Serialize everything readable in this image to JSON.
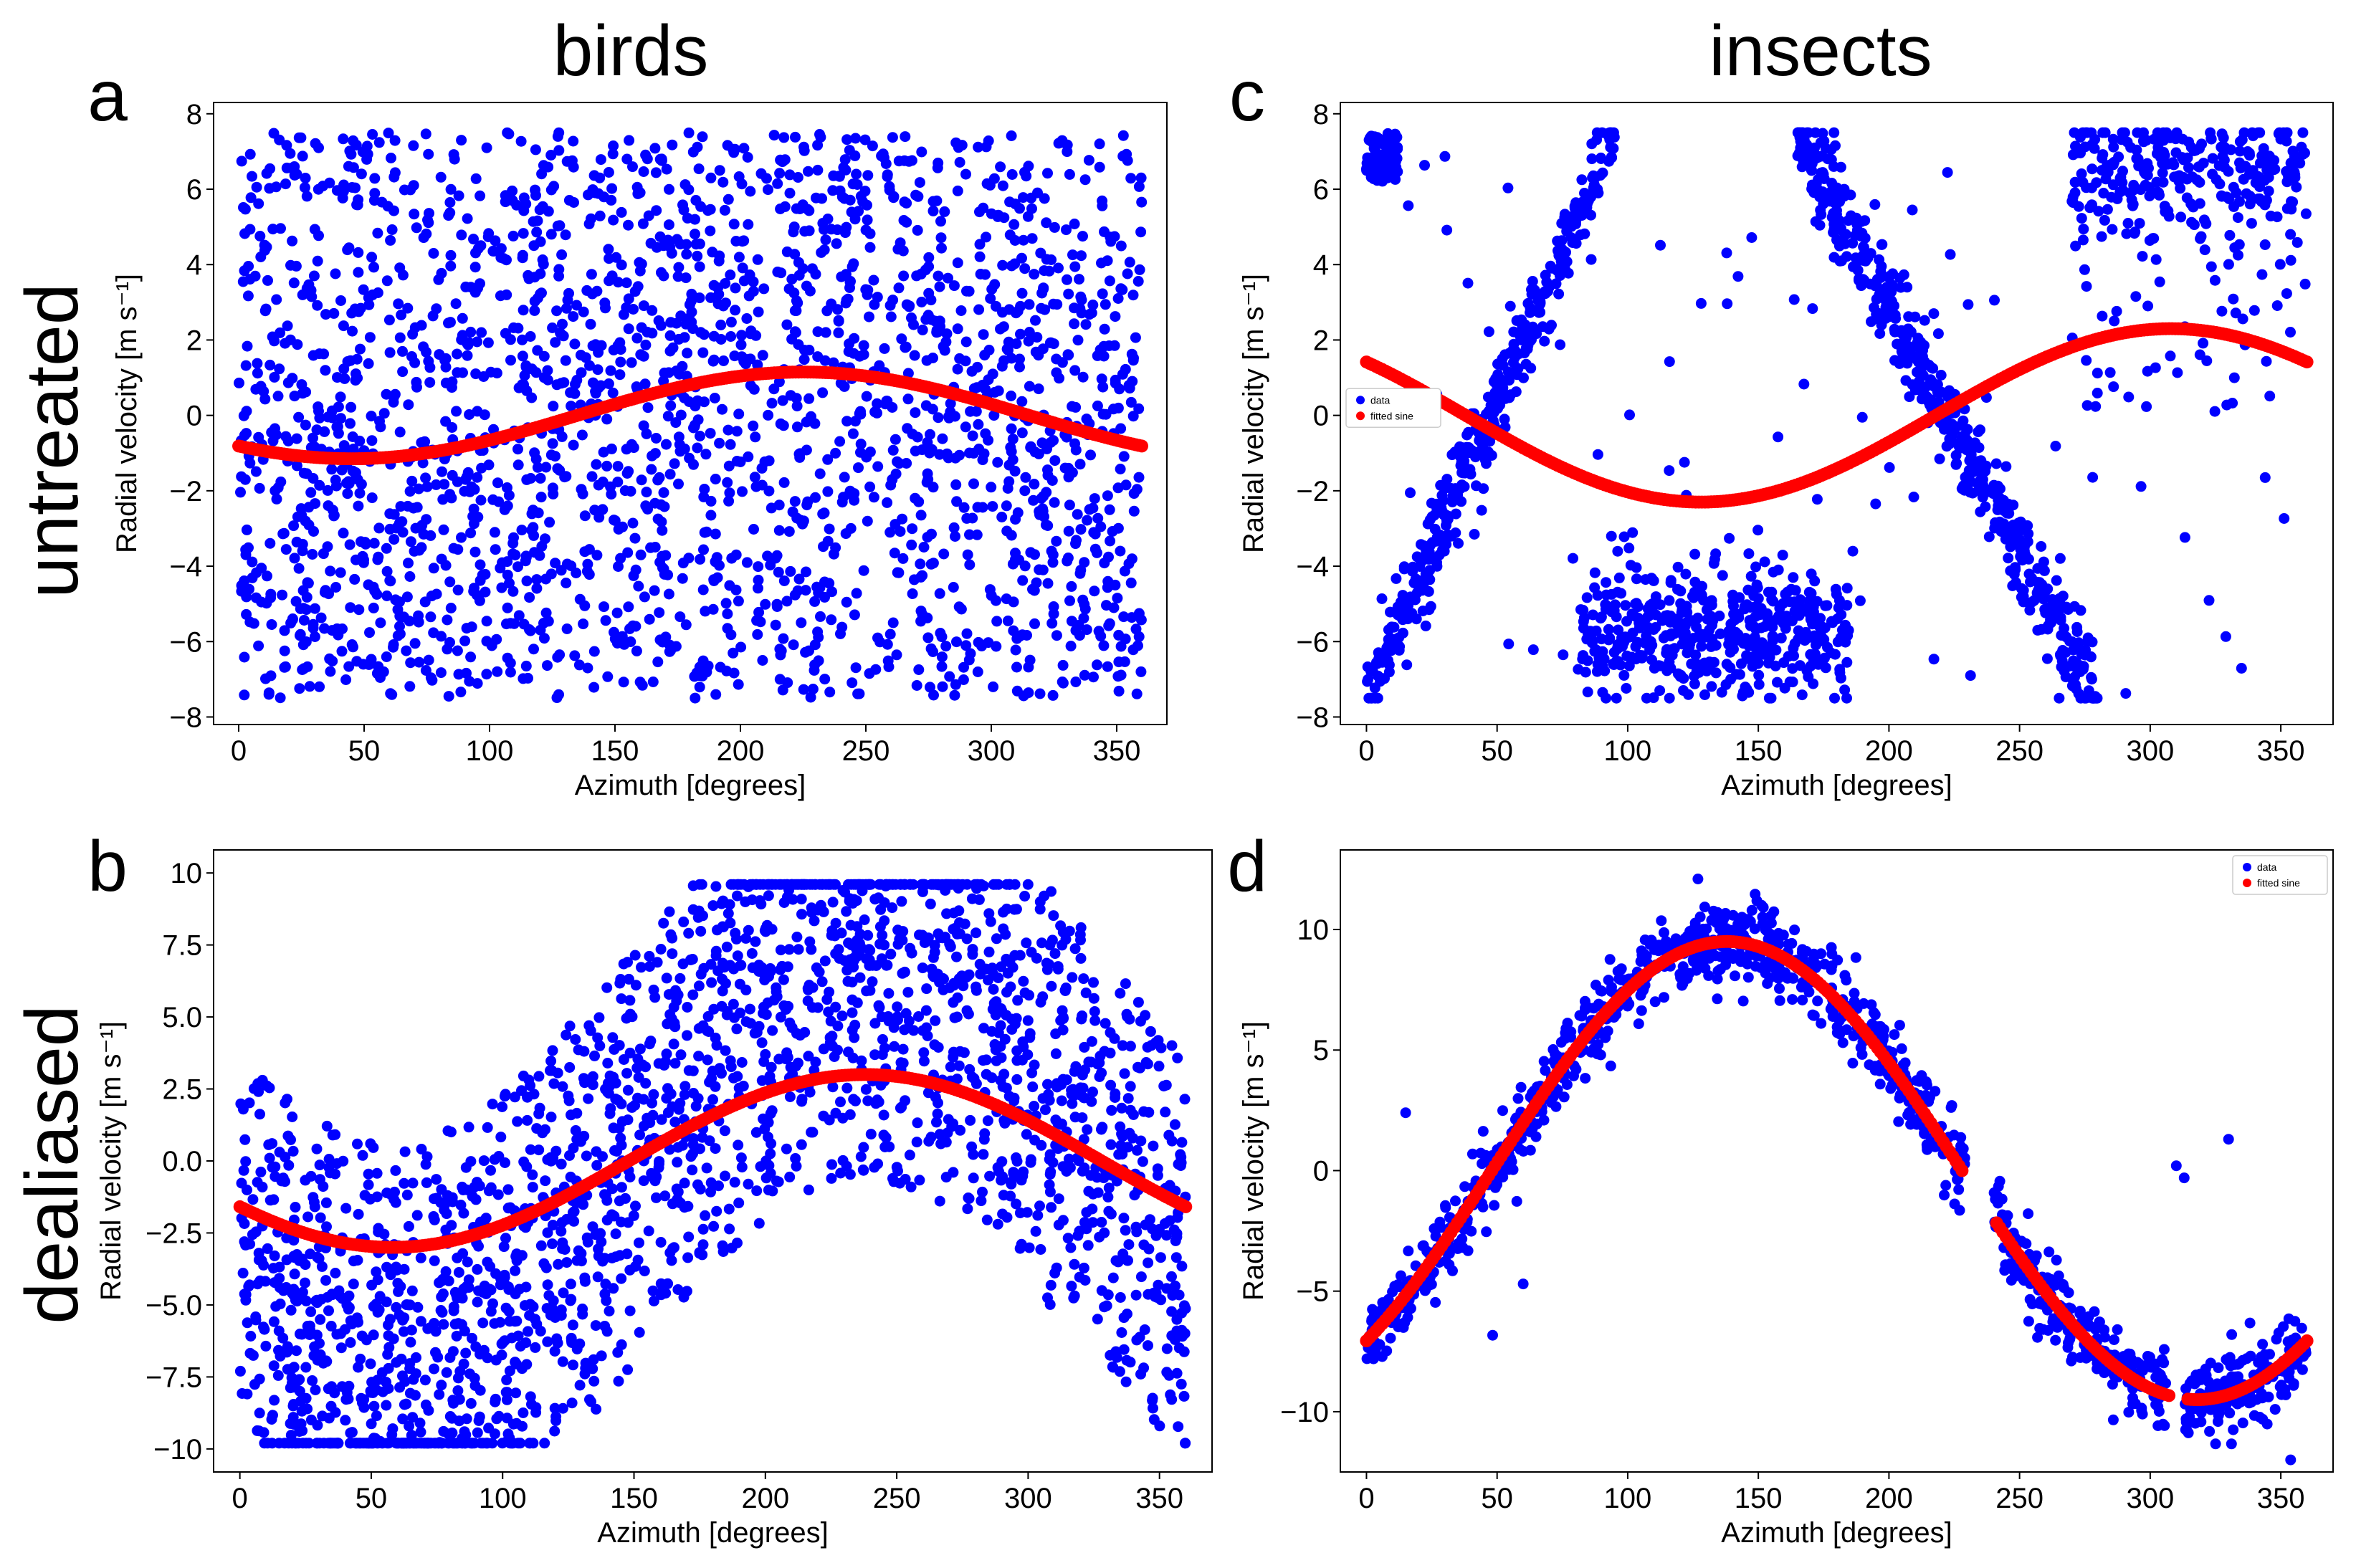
{
  "figure": {
    "column_titles": [
      "birds",
      "insects"
    ],
    "row_labels": [
      "untreated",
      "dealiased"
    ]
  },
  "chart_data": [
    {
      "id": "a",
      "panel_label": "a",
      "type": "scatter",
      "xlabel": "Azimuth [degrees]",
      "ylabel": "Radial velocity [m s⁻¹]",
      "xlim": [
        -10,
        370
      ],
      "ylim": [
        -8.2,
        8.3
      ],
      "xticks": [
        0,
        50,
        100,
        150,
        200,
        250,
        300,
        350
      ],
      "yticks": [
        -8,
        -6,
        -4,
        -2,
        0,
        2,
        4,
        6,
        8
      ],
      "ytick_labels": [
        "−8",
        "−6",
        "−4",
        "−2",
        "0",
        "2",
        "4",
        "6",
        "8"
      ],
      "legend": null,
      "series": [
        {
          "name": "data",
          "kind": "scatter",
          "color": "#0000ff",
          "count": 2300,
          "description": "dense, noisy cloud spanning the full folded velocity range −7.5 to 7.5 at all azimuths"
        },
        {
          "name": "fitted sine",
          "kind": "line",
          "color": "#ff0000",
          "model": {
            "amplitude": 1.15,
            "peak_azimuth": 225,
            "offset": 0
          }
        }
      ]
    },
    {
      "id": "c",
      "panel_label": "c",
      "type": "scatter",
      "xlabel": "Azimuth [degrees]",
      "ylabel": "Radial velocity [m s⁻¹]",
      "xlim": [
        -10,
        370
      ],
      "ylim": [
        -8.2,
        8.3
      ],
      "xticks": [
        0,
        50,
        100,
        150,
        200,
        250,
        300,
        350
      ],
      "yticks": [
        -8,
        -6,
        -4,
        -2,
        0,
        2,
        4,
        6,
        8
      ],
      "ytick_labels": [
        "−8",
        "−6",
        "−4",
        "−2",
        "0",
        "2",
        "4",
        "6",
        "8"
      ],
      "legend": {
        "location": "center-left",
        "entries": [
          "data",
          "fitted sine"
        ]
      },
      "series": [
        {
          "name": "data",
          "kind": "scatter",
          "color": "#0000ff",
          "count": 1900,
          "description": "aliased sine: rising band 0–95° from −7.5 to 7.5, falling band 165–280° from 7.5 to −7.5, clusters near −5 to −7.5 at 80–185° and near 6–7.5 at 270–360°, plus scattered outliers"
        },
        {
          "name": "fitted sine",
          "kind": "line",
          "color": "#ff0000",
          "model": {
            "amplitude": 2.3,
            "peak_azimuth": 308,
            "offset": 0
          }
        }
      ]
    },
    {
      "id": "b",
      "panel_label": "b",
      "type": "scatter",
      "xlabel": "Azimuth [degrees]",
      "ylabel": "Radial velocity [m s⁻¹]",
      "xlim": [
        -10,
        370
      ],
      "ylim": [
        -10.8,
        10.8
      ],
      "xticks": [
        0,
        50,
        100,
        150,
        200,
        250,
        300,
        350
      ],
      "yticks": [
        -10,
        -7.5,
        -5,
        -2.5,
        0,
        2.5,
        5,
        7.5,
        10
      ],
      "ytick_labels": [
        "−10",
        "−7.5",
        "−5.0",
        "−2.5",
        "0.0",
        "2.5",
        "5.0",
        "7.5",
        "10"
      ],
      "legend": null,
      "series": [
        {
          "name": "data",
          "kind": "scatter",
          "color": "#0000ff",
          "count": 2300,
          "description": "dealiased cloud within an envelope that follows the fitted sine ±7.5, spanning roughly −9.8 to 9.6"
        },
        {
          "name": "fitted sine",
          "kind": "line",
          "color": "#ff0000",
          "model": {
            "amplitude": 3.0,
            "peak_azimuth": 238,
            "offset": 0
          }
        }
      ]
    },
    {
      "id": "d",
      "panel_label": "d",
      "type": "scatter",
      "xlabel": "Azimuth [degrees]",
      "ylabel": "Radial velocity [m s⁻¹]",
      "xlim": [
        -10,
        370
      ],
      "ylim": [
        -12.5,
        13.3
      ],
      "xticks": [
        0,
        50,
        100,
        150,
        200,
        250,
        300,
        350
      ],
      "yticks": [
        -10,
        -5,
        0,
        5,
        10
      ],
      "ytick_labels": [
        "−10",
        "−5",
        "0",
        "5",
        "10"
      ],
      "legend": {
        "location": "top-right",
        "entries": [
          "data",
          "fitted sine"
        ]
      },
      "series": [
        {
          "name": "data",
          "kind": "scatter",
          "color": "#0000ff",
          "count": 1300,
          "description": "tight band around the fitted sine with a gap near 230–240° and 305–315°, a few outliers near 0 and 1.3 at ~310–330°"
        },
        {
          "name": "fitted sine",
          "kind": "line",
          "color": "#ff0000",
          "model": {
            "amplitude": 9.5,
            "peak_azimuth": 138,
            "offset": 0
          },
          "gaps_azimuth": [
            [
              228,
              240
            ],
            [
              308,
              314
            ]
          ]
        }
      ]
    }
  ]
}
